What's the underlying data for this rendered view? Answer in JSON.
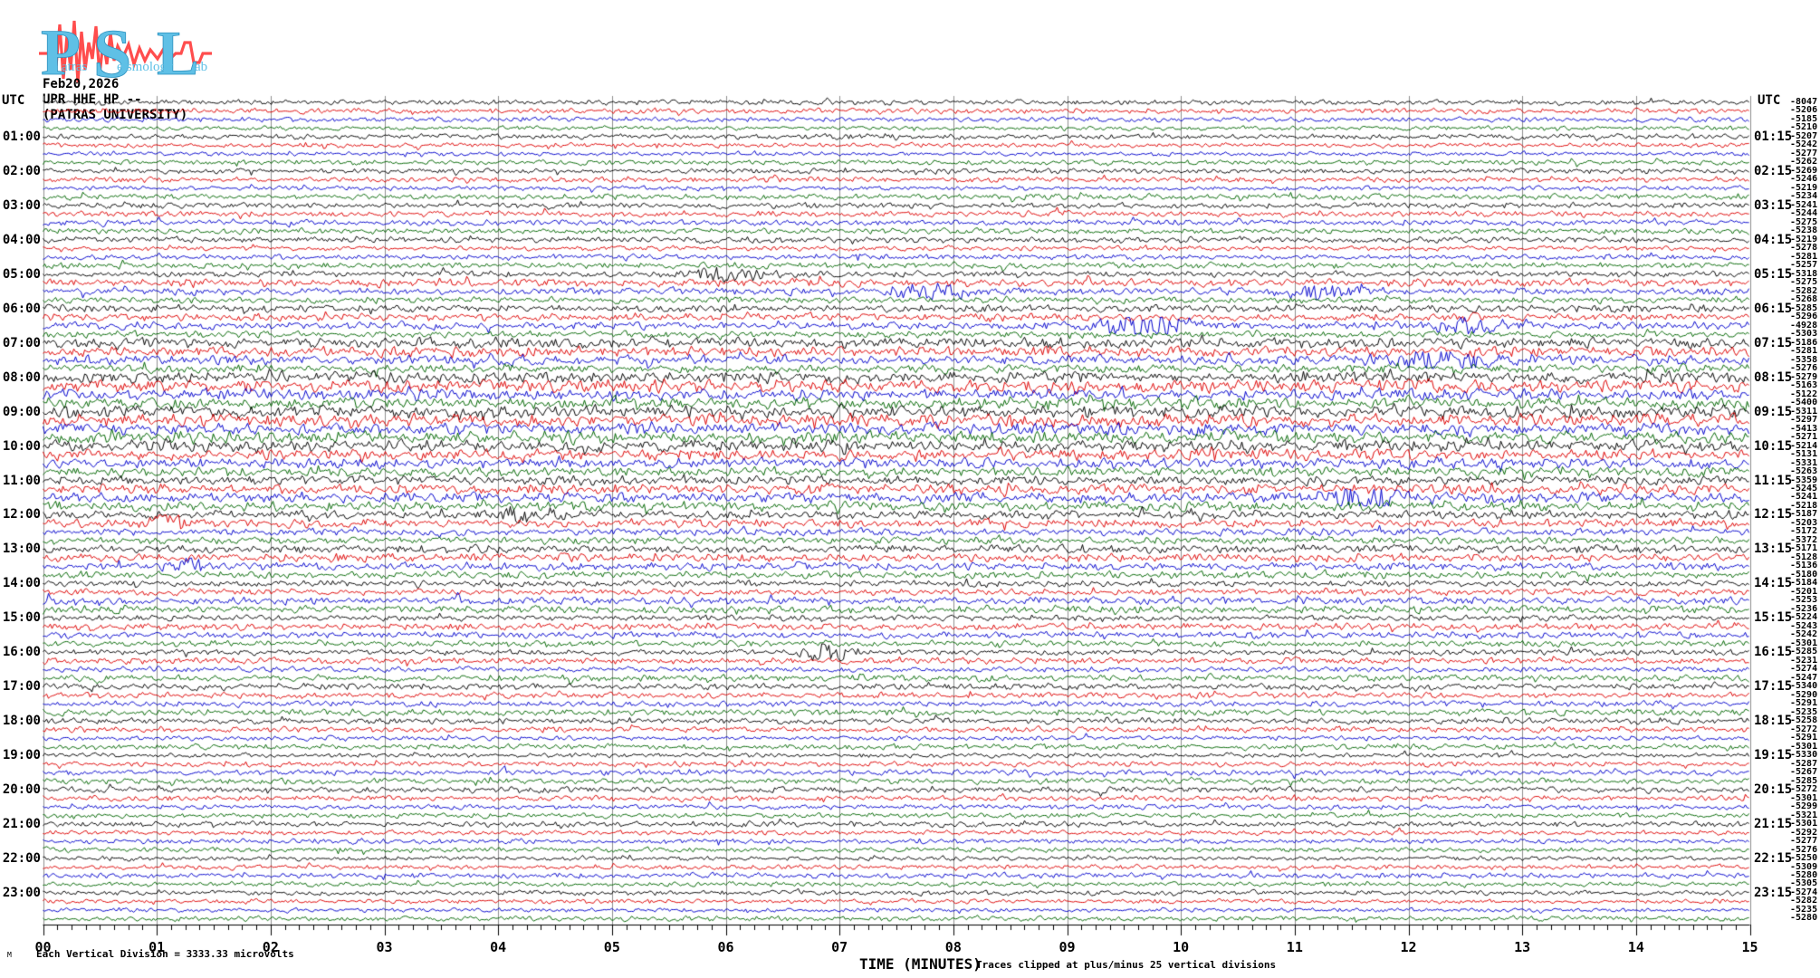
{
  "logo": {
    "letters": "PSL",
    "word_p": "atras",
    "word_s": "eismology",
    "word_l": "ab",
    "blue": "#5fc0e6",
    "red": "#ff4d4d"
  },
  "header": {
    "date": "Feb20,2026",
    "station": "UPR HHE HP --",
    "institution": "(PATRAS UNIVERSITY)"
  },
  "left_axis": {
    "title": "UTC",
    "labels": [
      "01:00",
      "02:00",
      "03:00",
      "04:00",
      "05:00",
      "06:00",
      "07:00",
      "08:00",
      "09:00",
      "10:00",
      "11:00",
      "12:00",
      "13:00",
      "14:00",
      "15:00",
      "16:00",
      "17:00",
      "18:00",
      "19:00",
      "20:00",
      "21:00",
      "22:00",
      "23:00"
    ]
  },
  "right_axis": {
    "title": "UTC",
    "labels": [
      "01:15",
      "02:15",
      "03:15",
      "04:15",
      "05:15",
      "06:15",
      "07:15",
      "08:15",
      "09:15",
      "10:15",
      "11:15",
      "12:15",
      "13:15",
      "14:15",
      "15:15",
      "16:15",
      "17:15",
      "18:15",
      "19:15",
      "20:15",
      "21:15",
      "22:15",
      "23:15"
    ]
  },
  "x_axis": {
    "title": "TIME (MINUTES)",
    "note": "Traces clipped at plus/minus 25 vertical divisions",
    "ticks": [
      "00",
      "01",
      "02",
      "03",
      "04",
      "05",
      "06",
      "07",
      "08",
      "09",
      "10",
      "11",
      "12",
      "13",
      "14",
      "15"
    ]
  },
  "footer": {
    "scale_mark": "M",
    "scale_text": "Each Vertical Division = 3333.33 microvolts"
  },
  "colors": {
    "trace_cycle": [
      "#000000",
      "#dd0000",
      "#0000cc",
      "#006600"
    ],
    "grid": "#8e8e8e",
    "axis": "#000000"
  },
  "chart_data": {
    "type": "line",
    "kind": "helicorder-seismogram",
    "title": "UPR HHE HP -- (PATRAS UNIVERSITY) Feb20,2026",
    "xlabel": "TIME (MINUTES)",
    "x_range_minutes": [
      0,
      15
    ],
    "minutes_per_line": 15,
    "lines_per_hour": 4,
    "hours": 24,
    "trace_color_order": [
      "black",
      "red",
      "blue",
      "green"
    ],
    "minor_ticks_per_minute": 8,
    "hour_amplitude": [
      1.8,
      1.8,
      1.9,
      2.0,
      2.0,
      2.6,
      2.8,
      3.4,
      4.6,
      4.4,
      4.2,
      3.8,
      3.0,
      3.0,
      2.7,
      2.4,
      2.4,
      2.2,
      2.0,
      2.0,
      1.9,
      1.9,
      1.9,
      1.8
    ],
    "right_values": [
      "-8047",
      "-5206",
      "-5185",
      "-5210",
      "-5207",
      "-5242",
      "-5277",
      "-5262",
      "-5269",
      "-5246",
      "-5219",
      "-5234",
      "-5241",
      "-5244",
      "-5275",
      "-5238",
      "-5219",
      "-5278",
      "-5281",
      "-5257",
      "-5318",
      "-5275",
      "-5282",
      "-5268",
      "-5285",
      "-5296",
      "-4928",
      "-5303",
      "-5186",
      "-5281",
      "-5358",
      "-5276",
      "-5279",
      "-5163",
      "-5122",
      "-5400",
      "-5311",
      "-5297",
      "-5413",
      "-5271",
      "-5214",
      "-5131",
      "-5331",
      "-5263",
      "-5359",
      "-5245",
      "-5241",
      "-5218",
      "-5187",
      "-5203",
      "-5172",
      "-5372",
      "-5171",
      "-5128",
      "-5136",
      "-5180",
      "-5184",
      "-5201",
      "-5253",
      "-5236",
      "-5224",
      "-5243",
      "-5242",
      "-5301",
      "-5285",
      "-5231",
      "-5274",
      "-5247",
      "-5340",
      "-5290",
      "-5291",
      "-5235",
      "-5258",
      "-5272",
      "-5291",
      "-5301",
      "-5330",
      "-5287",
      "-5267",
      "-5285",
      "-5272",
      "-5301",
      "-5299",
      "-5321",
      "-5301",
      "-5292",
      "-5277",
      "-5276",
      "-5250",
      "-5309",
      "-5280",
      "-5305",
      "-5274",
      "-5282",
      "-5235",
      "-5280"
    ],
    "events": [
      {
        "row": 20,
        "minute": 6.0,
        "gain": 2.0,
        "width": 0.35
      },
      {
        "row": 22,
        "minute": 7.8,
        "gain": 2.2,
        "width": 0.3
      },
      {
        "row": 22,
        "minute": 11.3,
        "gain": 3.0,
        "width": 0.3
      },
      {
        "row": 26,
        "minute": 9.7,
        "gain": 4.0,
        "width": 0.35
      },
      {
        "row": 26,
        "minute": 12.5,
        "gain": 2.0,
        "width": 0.3
      },
      {
        "row": 30,
        "minute": 12.3,
        "gain": 2.2,
        "width": 0.4
      },
      {
        "row": 46,
        "minute": 11.6,
        "gain": 2.5,
        "width": 0.3
      },
      {
        "row": 48,
        "minute": 4.2,
        "gain": 2.0,
        "width": 0.25
      },
      {
        "row": 49,
        "minute": 1.05,
        "gain": 3.0,
        "width": 0.15
      },
      {
        "row": 54,
        "minute": 1.3,
        "gain": 2.5,
        "width": 0.15
      },
      {
        "row": 64,
        "minute": 6.9,
        "gain": 3.5,
        "width": 0.2
      }
    ]
  }
}
